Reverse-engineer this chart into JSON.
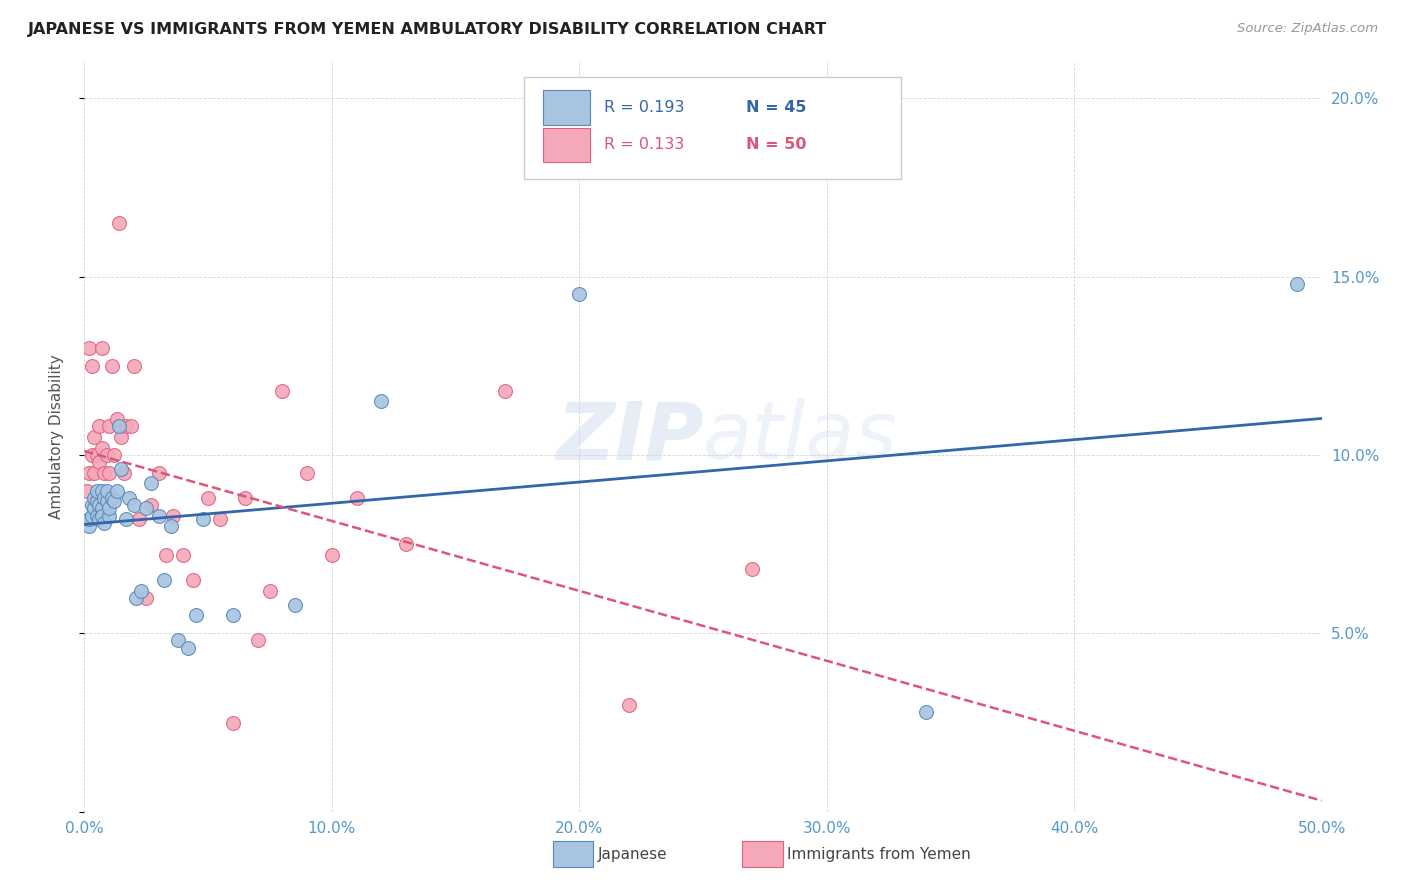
{
  "title": "JAPANESE VS IMMIGRANTS FROM YEMEN AMBULATORY DISABILITY CORRELATION CHART",
  "source": "Source: ZipAtlas.com",
  "ylabel": "Ambulatory Disability",
  "xlim": [
    0.0,
    0.5
  ],
  "ylim": [
    0.0,
    0.21
  ],
  "xticks": [
    0.0,
    0.1,
    0.2,
    0.3,
    0.4,
    0.5
  ],
  "xticklabels": [
    "0.0%",
    "10.0%",
    "20.0%",
    "30.0%",
    "40.0%",
    "50.0%"
  ],
  "yticks": [
    0.0,
    0.05,
    0.1,
    0.15,
    0.2
  ],
  "yticklabels_right": [
    "",
    "5.0%",
    "10.0%",
    "15.0%",
    "20.0%"
  ],
  "watermark": "ZIPatlas",
  "legend_labels": [
    "Japanese",
    "Immigrants from Yemen"
  ],
  "legend_R": [
    "R = 0.193",
    "R = 0.133"
  ],
  "legend_N": [
    "N = 45",
    "N = 50"
  ],
  "blue_color": "#A8C4E0",
  "pink_color": "#F4A8B8",
  "blue_edge_color": "#5588BB",
  "pink_edge_color": "#E06080",
  "blue_trend_color": "#3366AA",
  "pink_trend_color": "#DD5577",
  "tick_color": "#5599CC",
  "japanese_x": [
    0.002,
    0.002,
    0.003,
    0.003,
    0.004,
    0.004,
    0.005,
    0.005,
    0.005,
    0.006,
    0.006,
    0.007,
    0.007,
    0.007,
    0.008,
    0.008,
    0.009,
    0.009,
    0.01,
    0.01,
    0.011,
    0.012,
    0.013,
    0.014,
    0.015,
    0.017,
    0.018,
    0.02,
    0.021,
    0.023,
    0.025,
    0.027,
    0.03,
    0.032,
    0.035,
    0.038,
    0.042,
    0.045,
    0.048,
    0.06,
    0.085,
    0.12,
    0.2,
    0.34,
    0.49
  ],
  "japanese_y": [
    0.08,
    0.082,
    0.083,
    0.086,
    0.085,
    0.088,
    0.083,
    0.087,
    0.09,
    0.082,
    0.086,
    0.085,
    0.083,
    0.09,
    0.081,
    0.088,
    0.087,
    0.09,
    0.083,
    0.085,
    0.088,
    0.087,
    0.09,
    0.108,
    0.096,
    0.082,
    0.088,
    0.086,
    0.06,
    0.062,
    0.085,
    0.092,
    0.083,
    0.065,
    0.08,
    0.048,
    0.046,
    0.055,
    0.082,
    0.055,
    0.058,
    0.115,
    0.145,
    0.028,
    0.148
  ],
  "yemen_x": [
    0.001,
    0.002,
    0.002,
    0.003,
    0.003,
    0.004,
    0.004,
    0.005,
    0.005,
    0.006,
    0.006,
    0.007,
    0.007,
    0.008,
    0.008,
    0.009,
    0.009,
    0.01,
    0.01,
    0.011,
    0.012,
    0.013,
    0.014,
    0.015,
    0.016,
    0.017,
    0.019,
    0.02,
    0.022,
    0.025,
    0.027,
    0.03,
    0.033,
    0.036,
    0.04,
    0.044,
    0.05,
    0.055,
    0.06,
    0.065,
    0.07,
    0.075,
    0.08,
    0.09,
    0.1,
    0.11,
    0.13,
    0.17,
    0.22,
    0.27
  ],
  "yemen_y": [
    0.09,
    0.13,
    0.095,
    0.125,
    0.1,
    0.105,
    0.095,
    0.1,
    0.088,
    0.108,
    0.098,
    0.13,
    0.102,
    0.095,
    0.088,
    0.1,
    0.088,
    0.108,
    0.095,
    0.125,
    0.1,
    0.11,
    0.165,
    0.105,
    0.095,
    0.108,
    0.108,
    0.125,
    0.082,
    0.06,
    0.086,
    0.095,
    0.072,
    0.083,
    0.072,
    0.065,
    0.088,
    0.082,
    0.025,
    0.088,
    0.048,
    0.062,
    0.118,
    0.095,
    0.072,
    0.088,
    0.075,
    0.118,
    0.03,
    0.068
  ]
}
